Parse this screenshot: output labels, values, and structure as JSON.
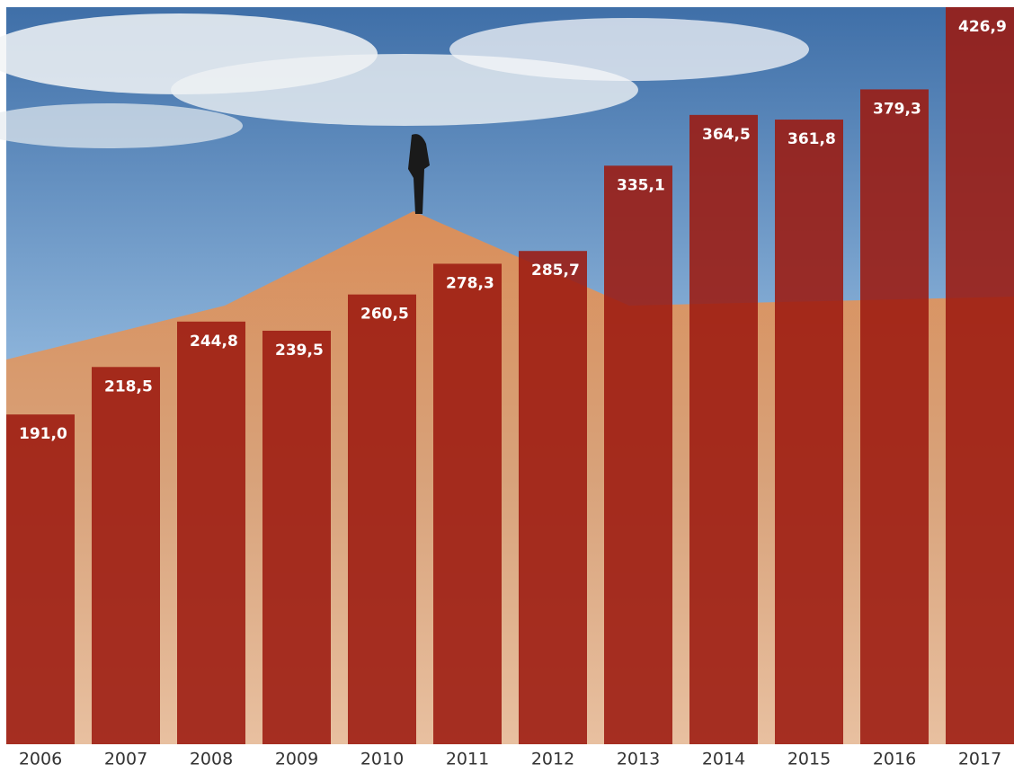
{
  "chart_data": {
    "type": "bar",
    "categories": [
      "2006",
      "2007",
      "2008",
      "2009",
      "2010",
      "2011",
      "2012",
      "2013",
      "2014",
      "2015",
      "2016",
      "2017"
    ],
    "values": [
      191.0,
      218.5,
      244.8,
      239.5,
      260.5,
      278.3,
      285.7,
      335.1,
      364.5,
      361.8,
      379.3,
      426.9
    ],
    "value_labels": [
      "191,0",
      "218,5",
      "244,8",
      "239,5",
      "260,5",
      "278,3",
      "285,7",
      "335,1",
      "364,5",
      "361,8",
      "379,3",
      "426,9"
    ],
    "color": "#9c1a10"
  }
}
